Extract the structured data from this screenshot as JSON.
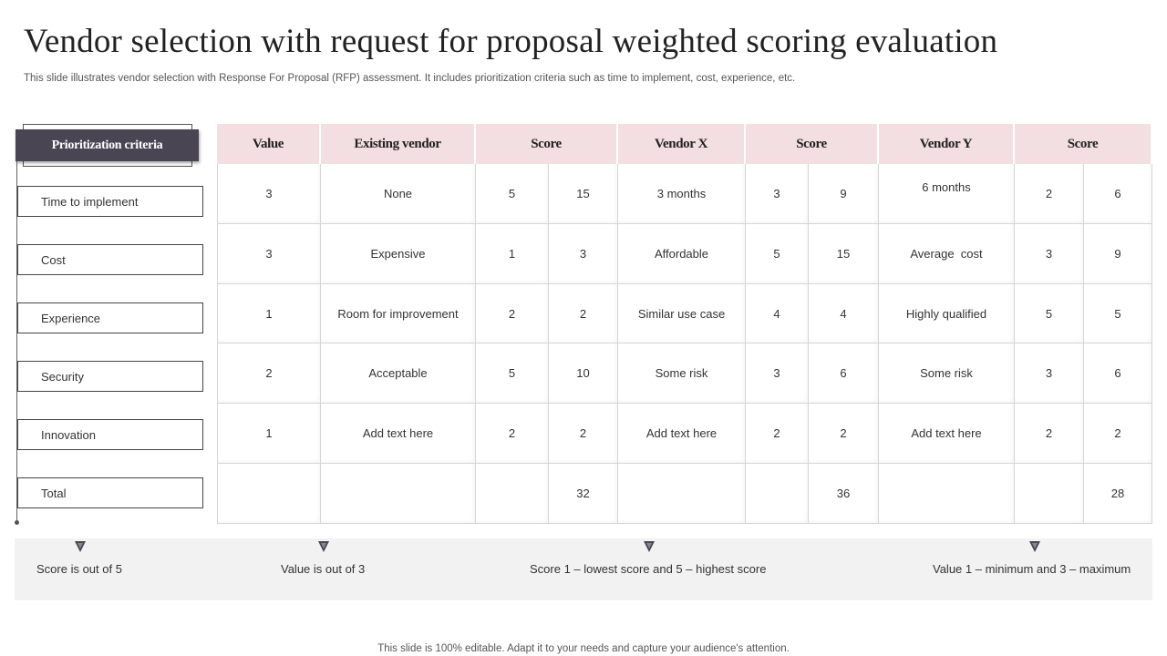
{
  "title": "Vendor selection with request for proposal weighted scoring evaluation",
  "subtitle": "This slide illustrates vendor selection with Response For Proposal (RFP) assessment. It includes prioritization criteria such as time to implement, cost, experience, etc.",
  "criteria": {
    "header": "Prioritization criteria",
    "items": [
      "Time to implement",
      "Cost",
      "Experience",
      "Security",
      "Innovation",
      "Total"
    ]
  },
  "table": {
    "headers": [
      "Value",
      "Existing vendor",
      "Score",
      "Vendor X",
      "Score",
      "Vendor Y",
      "Score"
    ],
    "rows": [
      [
        "3",
        "None",
        "5",
        "15",
        "3 months",
        "3",
        "9",
        "6 months",
        "2",
        "6"
      ],
      [
        "3",
        "Expensive",
        "1",
        "3",
        "Affordable",
        "5",
        "15",
        "Average  cost",
        "3",
        "9"
      ],
      [
        "1",
        "Room for improvement",
        "2",
        "2",
        "Similar use case",
        "4",
        "4",
        "Highly qualified",
        "5",
        "5"
      ],
      [
        "2",
        "Acceptable",
        "5",
        "10",
        "Some risk",
        "3",
        "6",
        "Some risk",
        "3",
        "6"
      ],
      [
        "1",
        "Add text here",
        "2",
        "2",
        "Add text here",
        "2",
        "2",
        "Add text here",
        "2",
        "2"
      ],
      [
        "",
        "",
        "",
        "32",
        "",
        "",
        "36",
        "",
        "",
        "28"
      ]
    ]
  },
  "notes": [
    "Score is out of 5",
    "Value is out of 3",
    "Score 1 – lowest score and 5 – highest score",
    "Value 1 – minimum and 3 – maximum"
  ],
  "footer": "This slide is 100% editable. Adapt it to your needs and capture your audience's attention.",
  "colors": {
    "header_fill": "#f3dfe1",
    "criteria_header_fill": "#4a4553",
    "notes_band": "#f2f2f2"
  },
  "icons": [
    "triangle-down-icon"
  ]
}
